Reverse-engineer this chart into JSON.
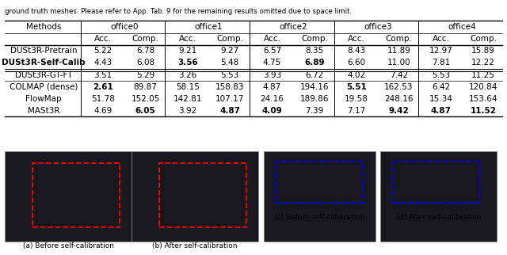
{
  "caption_top": "ground truth meshes. Please refer to App. Tab. 9 for the remaining results omitted due to space limit.",
  "col_groups": [
    "office0",
    "office1",
    "office2",
    "office3",
    "office4"
  ],
  "col_subheads": [
    "Acc.",
    "Comp."
  ],
  "row_labels": [
    "Methods",
    "DUSt3R-Pretrain",
    "DUSt3R-Self-Calib",
    "DUSt3R-GT-FT",
    "COLMAP (dense)",
    "FlowMap",
    "MASt3R"
  ],
  "bold_row_idx": 1,
  "data": [
    [
      "5.22",
      "6.78",
      "9.21",
      "9.27",
      "6.57",
      "8.35",
      "8.43",
      "11.89",
      "12.97",
      "15.89"
    ],
    [
      "4.43",
      "6.08",
      "3.56",
      "5.48",
      "4.75",
      "6.89",
      "6.60",
      "11.00",
      "7.81",
      "12.22"
    ],
    [
      "3.51",
      "5.29",
      "3.26",
      "5.53",
      "3.93",
      "6.72",
      "4.02",
      "7.42",
      "5.53",
      "11.25"
    ],
    [
      "2.61",
      "89.87",
      "58.15",
      "158.83",
      "4.87",
      "194.16",
      "5.51",
      "162.53",
      "6.42",
      "120.84"
    ],
    [
      "51.78",
      "152.05",
      "142.81",
      "107.17",
      "24.16",
      "189.86",
      "19.58",
      "248.16",
      "15.34",
      "153.64"
    ],
    [
      "4.69",
      "6.05",
      "3.92",
      "4.87",
      "4.09",
      "7.39",
      "7.17",
      "9.42",
      "4.87",
      "11.52"
    ]
  ],
  "bold_cells": [
    [
      false,
      false,
      false,
      false,
      false,
      false,
      false,
      false,
      false,
      false
    ],
    [
      false,
      false,
      true,
      false,
      false,
      true,
      false,
      false,
      false,
      false
    ],
    [
      false,
      false,
      false,
      false,
      false,
      false,
      false,
      false,
      false,
      false
    ],
    [
      true,
      false,
      false,
      false,
      false,
      false,
      true,
      false,
      false,
      false
    ],
    [
      false,
      false,
      false,
      false,
      false,
      false,
      false,
      false,
      false,
      false
    ],
    [
      false,
      true,
      false,
      true,
      true,
      false,
      false,
      true,
      true,
      true
    ]
  ],
  "subcaptions": [
    "(a) Before self-calibration",
    "(b) After self-calibration",
    "(c) Before self-calibration",
    "(d) After self-calibration"
  ],
  "bg_color": "#ffffff",
  "table_font_size": 7.5,
  "header_font_size": 7.5
}
